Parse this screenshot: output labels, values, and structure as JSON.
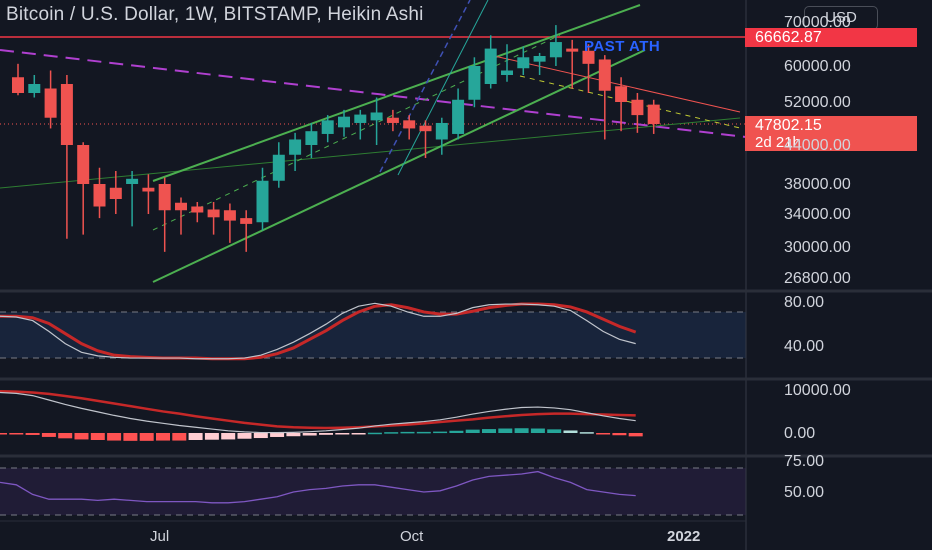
{
  "header": {
    "title": "Bitcoin / U.S. Dollar, 1W, BITSTAMP, Heikin Ashi",
    "currency_button": "USD"
  },
  "annotations": {
    "past_ath": "PAST ATH"
  },
  "price_tags": {
    "ath": "66662.87",
    "last": "47802.15",
    "countdown": "2d 21h"
  },
  "colors": {
    "up": "#26a69a",
    "down": "#ef5350",
    "channel": "#4caf50",
    "dashed_ma": "#b040d0",
    "ath_line": "#f23645",
    "stoch_k": "#c0c4cc",
    "stoch_d": "#c62828",
    "macd": "#c0c4cc",
    "signal": "#c62828",
    "rsi": "#7e57c2"
  },
  "chart_data": [
    {
      "type": "candlestick",
      "title": "Bitcoin / U.S. Dollar, 1W, BITSTAMP, Heikin Ashi",
      "price_axis_ticks": [
        "70000.00",
        "60000.00",
        "52000.00",
        "44000.00",
        "38000.00",
        "34000.00",
        "30000.00",
        "26800.00"
      ],
      "time_axis_ticks": [
        "Jul",
        "Oct",
        "2022"
      ],
      "horizontal_line": {
        "value": 66662.87,
        "label": "66662.87"
      },
      "last_price": 47802.15,
      "candles": [
        {
          "o": 57500,
          "h": 60500,
          "l": 53500,
          "c": 54000
        },
        {
          "o": 54000,
          "h": 58000,
          "l": 53000,
          "c": 56000
        },
        {
          "o": 55000,
          "h": 59000,
          "l": 47000,
          "c": 49000
        },
        {
          "o": 56000,
          "h": 58000,
          "l": 31000,
          "c": 44000
        },
        {
          "o": 44000,
          "h": 44500,
          "l": 31500,
          "c": 38000
        },
        {
          "o": 38000,
          "h": 40500,
          "l": 33500,
          "c": 35000
        },
        {
          "o": 37500,
          "h": 40000,
          "l": 34000,
          "c": 36000
        },
        {
          "o": 38000,
          "h": 40000,
          "l": 32500,
          "c": 38800
        },
        {
          "o": 37500,
          "h": 39500,
          "l": 34000,
          "c": 37000
        },
        {
          "o": 38000,
          "h": 39000,
          "l": 29500,
          "c": 34500
        },
        {
          "o": 35500,
          "h": 36200,
          "l": 31500,
          "c": 34500
        },
        {
          "o": 35000,
          "h": 35600,
          "l": 33000,
          "c": 34200
        },
        {
          "o": 34600,
          "h": 35600,
          "l": 31500,
          "c": 33600
        },
        {
          "o": 34500,
          "h": 35400,
          "l": 30500,
          "c": 33200
        },
        {
          "o": 33500,
          "h": 34500,
          "l": 29500,
          "c": 32800
        },
        {
          "o": 33000,
          "h": 40500,
          "l": 32000,
          "c": 38500
        },
        {
          "o": 38500,
          "h": 44500,
          "l": 37500,
          "c": 42500
        },
        {
          "o": 42500,
          "h": 46200,
          "l": 40000,
          "c": 45000
        },
        {
          "o": 44000,
          "h": 48000,
          "l": 42000,
          "c": 46500
        },
        {
          "o": 46000,
          "h": 49500,
          "l": 44500,
          "c": 48500
        },
        {
          "o": 47200,
          "h": 50500,
          "l": 45500,
          "c": 49200
        },
        {
          "o": 48000,
          "h": 50500,
          "l": 45000,
          "c": 49600
        },
        {
          "o": 48500,
          "h": 53000,
          "l": 44000,
          "c": 50000
        },
        {
          "o": 49000,
          "h": 50500,
          "l": 46500,
          "c": 48000
        },
        {
          "o": 48500,
          "h": 49500,
          "l": 45000,
          "c": 47000
        },
        {
          "o": 47500,
          "h": 48500,
          "l": 42000,
          "c": 46500
        },
        {
          "o": 45000,
          "h": 49000,
          "l": 42500,
          "c": 48000
        },
        {
          "o": 46000,
          "h": 55000,
          "l": 45000,
          "c": 52500
        },
        {
          "o": 52500,
          "h": 62000,
          "l": 51000,
          "c": 60000
        },
        {
          "o": 56000,
          "h": 67000,
          "l": 55000,
          "c": 64000
        },
        {
          "o": 58000,
          "h": 65000,
          "l": 56500,
          "c": 59000
        },
        {
          "o": 59500,
          "h": 64500,
          "l": 58000,
          "c": 62000
        },
        {
          "o": 61000,
          "h": 63000,
          "l": 58000,
          "c": 62300
        },
        {
          "o": 62000,
          "h": 69000,
          "l": 60000,
          "c": 65500
        },
        {
          "o": 64000,
          "h": 66000,
          "l": 55000,
          "c": 63300
        },
        {
          "o": 63500,
          "h": 65000,
          "l": 54000,
          "c": 60500
        },
        {
          "o": 61500,
          "h": 62500,
          "l": 45000,
          "c": 54500
        },
        {
          "o": 55500,
          "h": 57500,
          "l": 46500,
          "c": 52000
        },
        {
          "o": 52500,
          "h": 54000,
          "l": 46200,
          "c": 49500
        },
        {
          "o": 51500,
          "h": 52500,
          "l": 46000,
          "c": 47800
        }
      ]
    },
    {
      "type": "line",
      "name": "Stochastic",
      "y_ticks": [
        "80.00",
        "40.00"
      ],
      "bands": [
        82,
        18
      ],
      "series": [
        {
          "name": "K",
          "values": [
            76,
            75,
            70,
            55,
            38,
            26,
            21,
            19,
            18,
            18,
            18,
            18,
            17,
            17,
            17,
            18,
            22,
            30,
            40,
            52,
            65,
            80,
            90,
            94,
            90,
            82,
            76,
            76,
            80,
            88,
            92,
            93,
            93,
            92,
            90,
            84,
            70,
            55,
            44,
            38
          ]
        },
        {
          "name": "D",
          "values": [
            76,
            76,
            74,
            66,
            52,
            38,
            28,
            22,
            20,
            19,
            18,
            18,
            18,
            17,
            17,
            17,
            19,
            24,
            32,
            44,
            56,
            70,
            82,
            90,
            92,
            88,
            82,
            79,
            79,
            83,
            88,
            91,
            93,
            93,
            92,
            89,
            82,
            72,
            62,
            54
          ]
        }
      ]
    },
    {
      "type": "bar",
      "name": "MACD",
      "y_ticks": [
        "10000.00",
        "0.00"
      ],
      "series": [
        {
          "name": "MACD",
          "values": [
            9200,
            9000,
            8500,
            7500,
            6500,
            5600,
            4800,
            4000,
            3300,
            2700,
            2200,
            1700,
            1300,
            900,
            500,
            250,
            100,
            80,
            150,
            300,
            500,
            800,
            1100,
            1600,
            2000,
            2300,
            2600,
            3000,
            3600,
            4300,
            4900,
            5400,
            5800,
            5900,
            5700,
            5300,
            4600,
            3900,
            3300,
            2800
          ]
        },
        {
          "name": "Signal",
          "values": [
            9500,
            9400,
            9200,
            8900,
            8400,
            7900,
            7300,
            6700,
            6100,
            5500,
            4900,
            4400,
            3800,
            3300,
            2800,
            2300,
            1900,
            1500,
            1300,
            1200,
            1150,
            1200,
            1300,
            1500,
            1700,
            1900,
            2200,
            2500,
            2800,
            3100,
            3500,
            3800,
            4100,
            4300,
            4400,
            4400,
            4300,
            4200,
            4100,
            4000
          ]
        },
        {
          "name": "Histogram",
          "values": [
            -300,
            -400,
            -700,
            -1400,
            -1900,
            -2300,
            -2500,
            -2700,
            -2800,
            -2800,
            -2700,
            -2700,
            -2500,
            -2400,
            -2300,
            -2050,
            -1800,
            -1420,
            -1150,
            -900,
            -650,
            -400,
            -200,
            100,
            300,
            400,
            400,
            500,
            800,
            1200,
            1400,
            1600,
            1700,
            1600,
            1300,
            900,
            300,
            -300,
            -800,
            -1200
          ]
        }
      ]
    },
    {
      "type": "line",
      "name": "RSI",
      "y_ticks": [
        "75.00",
        "50.00"
      ],
      "bands": [
        70,
        30
      ],
      "series": [
        {
          "name": "RSI",
          "values": [
            58,
            56,
            48,
            44,
            44,
            44,
            43,
            44,
            43,
            42,
            42,
            42,
            42,
            41,
            41,
            42,
            44,
            46,
            50,
            52,
            53,
            55,
            56,
            56,
            54,
            52,
            50,
            51,
            55,
            60,
            63,
            64,
            65,
            67,
            62,
            58,
            52,
            50,
            48,
            47
          ]
        }
      ]
    }
  ]
}
